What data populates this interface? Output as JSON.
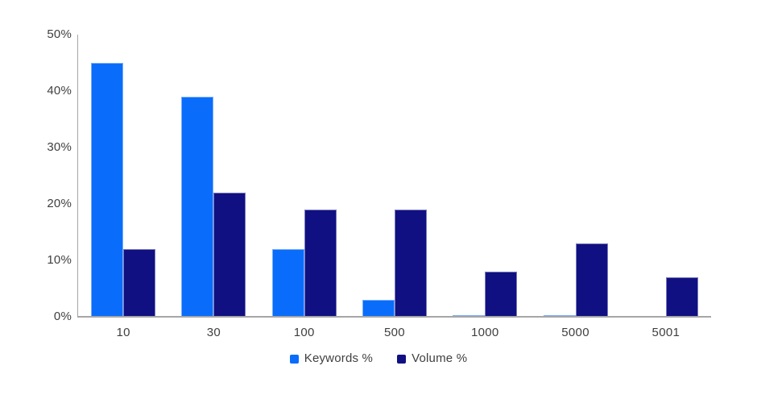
{
  "chart_data": {
    "type": "bar",
    "title": "",
    "xlabel": "",
    "ylabel": "",
    "categories": [
      "10",
      "30",
      "100",
      "500",
      "1000",
      "5000",
      "5001"
    ],
    "series": [
      {
        "name": "Keywords %",
        "color": "#0a6cfa",
        "values": [
          45,
          39,
          12,
          3,
          0.3,
          0.3,
          0
        ]
      },
      {
        "name": "Volume %",
        "color": "#101082",
        "values": [
          12,
          22,
          19,
          19,
          8,
          13,
          7
        ]
      }
    ],
    "ylim": [
      0,
      50
    ],
    "yticks": [
      0,
      10,
      20,
      30,
      40,
      50
    ],
    "ytick_suffix": "%",
    "grid": false,
    "legend_position": "bottom-center",
    "colors": {
      "axis": "#a6a6a6",
      "label_text": "#3f3f3f",
      "background": "#ffffff"
    }
  }
}
